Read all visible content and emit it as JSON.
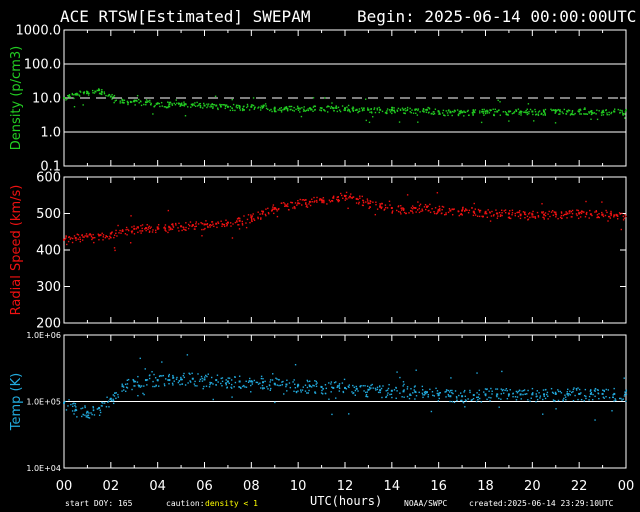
{
  "header": {
    "title": "ACE RTSW[Estimated] SWEPAM",
    "begin": "Begin: 2025-06-14 00:00:00UTC"
  },
  "footer": {
    "start_doy": "start DOY: 165",
    "caution_label": "caution:",
    "caution_value": "density < 1",
    "agency": "NOAA/SWPC",
    "created": "created:2025-06-14 23:29:10UTC"
  },
  "colors": {
    "density": "#22cc22",
    "speed": "#ee1111",
    "temp": "#22aadd",
    "caution": "#ffff00",
    "axis": "#ffffff",
    "background": "#000000"
  },
  "chart_data": [
    {
      "type": "scatter",
      "panel": "density",
      "ylabel": "Density (p/cm3)",
      "yscale": "log",
      "ylim": [
        0.1,
        1000
      ],
      "yticks": [
        "1000.0",
        "100.0",
        "10.0",
        "1.0",
        "0.1"
      ],
      "reference_lines": [
        {
          "y": 100,
          "style": "solid"
        },
        {
          "y": 10,
          "style": "dashed"
        },
        {
          "y": 1,
          "style": "solid"
        }
      ],
      "x": [
        0,
        0.5,
        1,
        1.5,
        2,
        2.5,
        3,
        3.5,
        4,
        4.5,
        5,
        5.5,
        6,
        6.5,
        7,
        7.5,
        8,
        8.5,
        9,
        9.5,
        10,
        10.5,
        11,
        11.5,
        12,
        12.5,
        13,
        13.5,
        14,
        14.5,
        15,
        15.5,
        16,
        16.5,
        17,
        17.5,
        18,
        18.5,
        19,
        19.5,
        20,
        20.5,
        21,
        21.5,
        22,
        22.5,
        23,
        23.5
      ],
      "values": [
        10,
        13,
        15,
        17,
        11,
        8.5,
        8,
        7.5,
        7,
        6.5,
        6.5,
        6.5,
        6,
        6,
        5.5,
        5.5,
        5.5,
        5.5,
        5,
        5,
        5,
        5,
        5,
        5,
        5,
        4.5,
        4.5,
        4.5,
        4.5,
        4.5,
        4.5,
        4.5,
        4,
        3.8,
        3.8,
        4,
        4,
        4,
        4,
        4,
        4,
        4,
        4,
        4,
        4,
        4,
        4,
        4
      ]
    },
    {
      "type": "scatter",
      "panel": "speed",
      "ylabel": "Radial Speed (km/s)",
      "ylim": [
        200,
        600
      ],
      "yticks": [
        "600",
        "500",
        "400",
        "300",
        "200"
      ],
      "x": [
        0,
        0.5,
        1,
        1.5,
        2,
        2.5,
        3,
        3.5,
        4,
        4.5,
        5,
        5.5,
        6,
        6.5,
        7,
        7.5,
        8,
        8.5,
        9,
        9.5,
        10,
        10.5,
        11,
        11.5,
        12,
        12.5,
        13,
        13.5,
        14,
        14.5,
        15,
        15.5,
        16,
        16.5,
        17,
        17.5,
        18,
        18.5,
        19,
        19.5,
        20,
        20.5,
        21,
        21.5,
        22,
        22.5,
        23,
        23.5
      ],
      "values": [
        428,
        433,
        437,
        440,
        445,
        452,
        458,
        460,
        462,
        462,
        465,
        468,
        470,
        472,
        475,
        480,
        490,
        505,
        515,
        522,
        528,
        532,
        538,
        543,
        548,
        540,
        528,
        520,
        515,
        512,
        515,
        518,
        510,
        508,
        508,
        505,
        503,
        500,
        500,
        497,
        497,
        497,
        498,
        500,
        500,
        498,
        497,
        495
      ]
    },
    {
      "type": "scatter",
      "panel": "temp",
      "ylabel": "Temp (K)",
      "yscale": "log",
      "ylim": [
        10000,
        1000000
      ],
      "yticks": [
        "1.0E+06",
        "1.0E+05",
        "1.0E+04"
      ],
      "reference_lines": [
        {
          "y": 100000,
          "style": "solid"
        }
      ],
      "x": [
        0,
        0.5,
        1,
        1.5,
        2,
        2.5,
        3,
        3.5,
        4,
        4.5,
        5,
        5.5,
        6,
        6.5,
        7,
        7.5,
        8,
        8.5,
        9,
        9.5,
        10,
        10.5,
        11,
        11.5,
        12,
        12.5,
        13,
        13.5,
        14,
        14.5,
        15,
        15.5,
        16,
        16.5,
        17,
        17.5,
        18,
        18.5,
        19,
        19.5,
        20,
        20.5,
        21,
        21.5,
        22,
        22.5,
        23,
        23.5
      ],
      "values": [
        95000,
        75000,
        70000,
        80000,
        110000,
        170000,
        200000,
        210000,
        210000,
        210000,
        215000,
        220000,
        215000,
        210000,
        200000,
        200000,
        200000,
        195000,
        185000,
        180000,
        175000,
        170000,
        165000,
        160000,
        160000,
        155000,
        150000,
        148000,
        145000,
        142000,
        140000,
        138000,
        125000,
        120000,
        120000,
        125000,
        128000,
        128000,
        128000,
        128000,
        128000,
        128000,
        130000,
        130000,
        130000,
        130000,
        130000,
        130000
      ]
    }
  ],
  "x_axis": {
    "label": "UTC(hours)",
    "xlim": [
      0,
      24
    ],
    "ticks": [
      "00",
      "02",
      "04",
      "06",
      "08",
      "10",
      "12",
      "14",
      "16",
      "18",
      "20",
      "22",
      "00"
    ]
  }
}
